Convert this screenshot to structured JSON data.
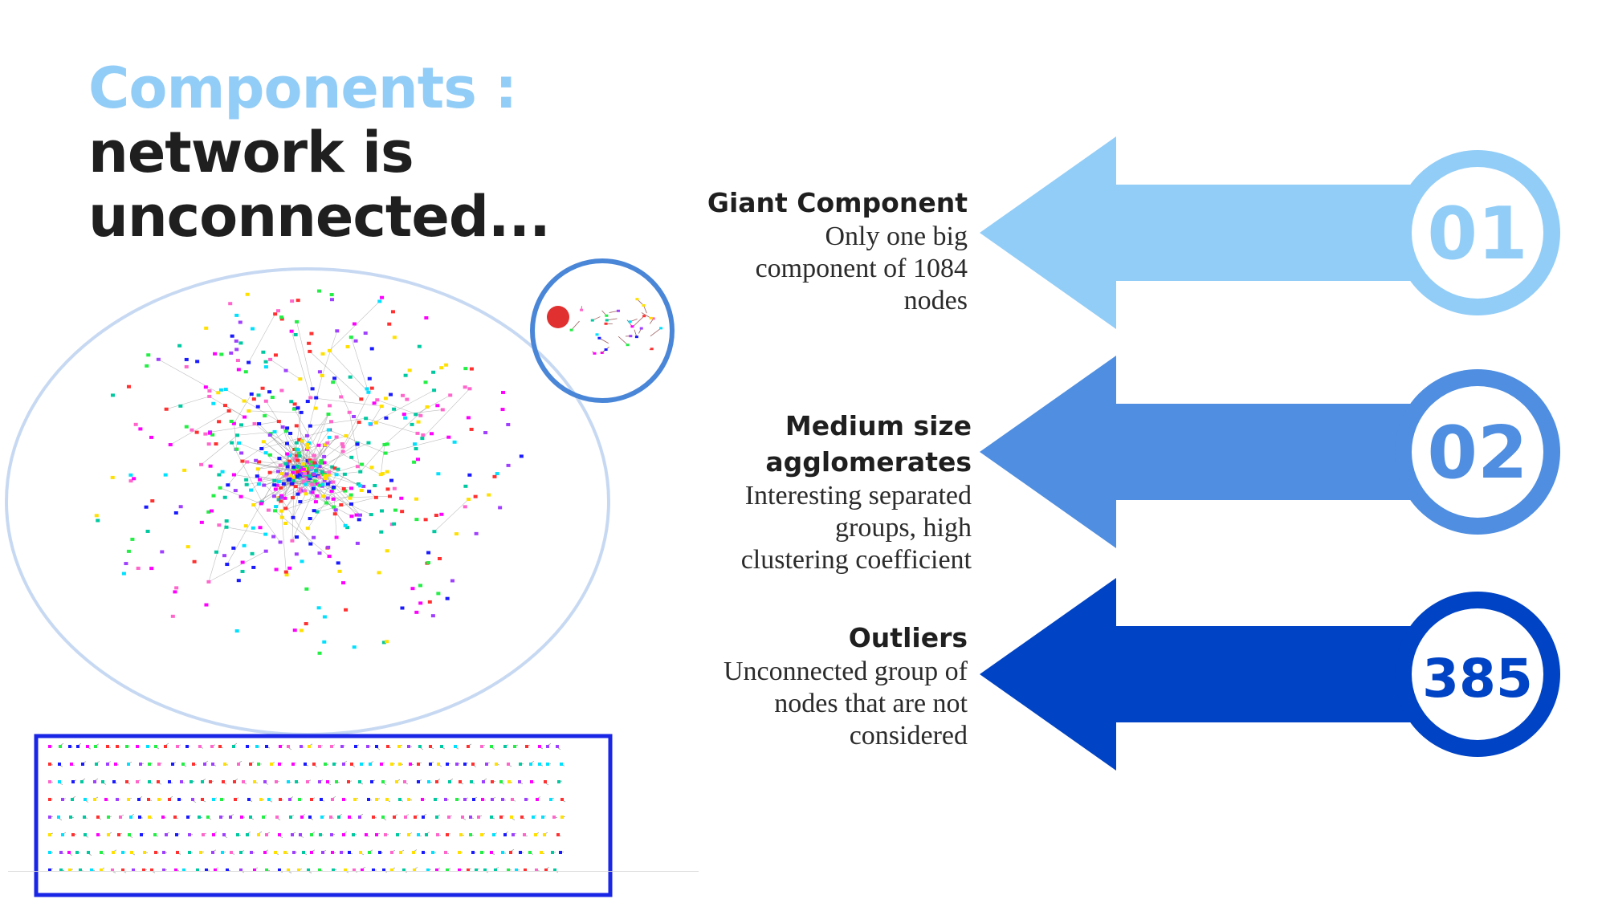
{
  "title": {
    "accent": "Components :",
    "line2": "network is",
    "line3": "unconnected..."
  },
  "items": [
    {
      "heading": "Giant Component",
      "body": [
        "Only one big",
        "component of 1084",
        "nodes"
      ],
      "number": "01",
      "color": "#92cdf7"
    },
    {
      "heading": [
        "Medium size",
        "agglomerates"
      ],
      "body": [
        "Interesting separated",
        "groups, high",
        "clustering coefficient"
      ],
      "number": "02",
      "color": "#4f8ee0"
    },
    {
      "heading": "Outliers",
      "body": [
        "Unconnected group of",
        "nodes that are not",
        "considered"
      ],
      "number": "385",
      "color": "#0043c4"
    }
  ],
  "colors": {
    "giant_ellipse": "#c7d9f2",
    "medium_circle": "#4a86d8",
    "outlier_box": "#1a26e6"
  }
}
